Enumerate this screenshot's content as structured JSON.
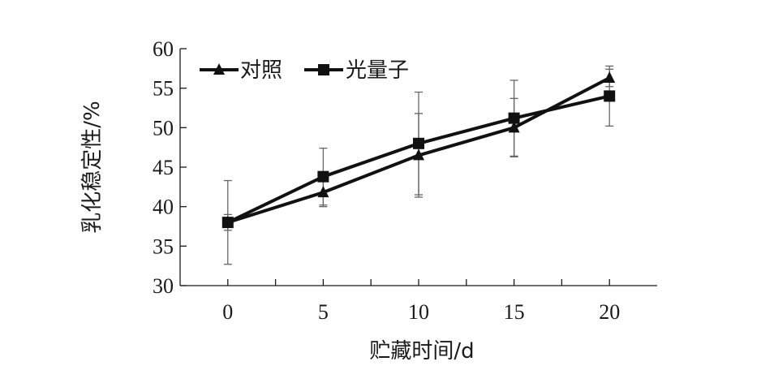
{
  "chart_data": {
    "type": "line",
    "xlabel": "贮藏时间/d",
    "ylabel": "乳化稳定性/%",
    "x": [
      0,
      5,
      10,
      15,
      20
    ],
    "x_ticks": [
      "0",
      "5",
      "10",
      "15",
      "20"
    ],
    "xlim": [
      -2.5,
      22.5
    ],
    "ylim": [
      30,
      60
    ],
    "y_ticks": [
      "30",
      "35",
      "40",
      "45",
      "50",
      "55",
      "60"
    ],
    "grid": false,
    "legend_position": "top-left",
    "series": [
      {
        "name": "对照",
        "marker": "triangle",
        "values": [
          38.0,
          41.8,
          46.5,
          50.0,
          56.3
        ],
        "error": [
          1.0,
          1.8,
          5.3,
          3.7,
          1.1
        ]
      },
      {
        "name": "光量子",
        "marker": "square",
        "values": [
          38.0,
          43.8,
          48.0,
          51.2,
          54.0
        ],
        "error": [
          5.3,
          3.6,
          6.5,
          4.8,
          3.8
        ]
      }
    ]
  }
}
